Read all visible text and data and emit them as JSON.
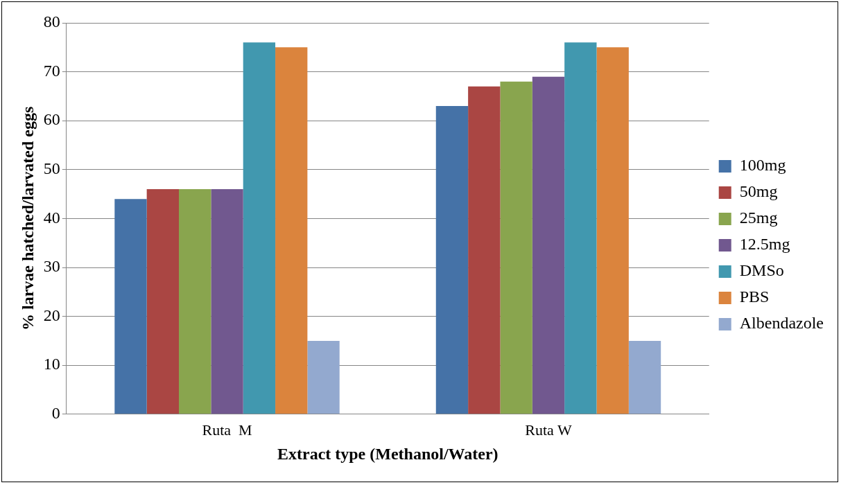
{
  "chart_data": {
    "type": "bar",
    "xlabel": "Extract type (Methanol/Water)",
    "ylabel": "% larvae hatched/larvated eggs",
    "categories": [
      "Ruta  M",
      "Ruta W"
    ],
    "series": [
      {
        "name": "100mg",
        "color": "#4572a7",
        "values": [
          44,
          63
        ]
      },
      {
        "name": "50mg",
        "color": "#aa4643",
        "values": [
          46,
          67
        ]
      },
      {
        "name": "25mg",
        "color": "#89a54e",
        "values": [
          46,
          68
        ]
      },
      {
        "name": "12.5mg",
        "color": "#71588f",
        "values": [
          46,
          69
        ]
      },
      {
        "name": "DMSo",
        "color": "#4198af",
        "values": [
          76,
          76
        ]
      },
      {
        "name": "PBS",
        "color": "#db843d",
        "values": [
          75,
          75
        ]
      },
      {
        "name": "Albendazole",
        "color": "#93a9cf",
        "values": [
          15,
          15
        ]
      }
    ],
    "ylim": [
      0,
      80
    ],
    "yticks": [
      0,
      10,
      20,
      30,
      40,
      50,
      60,
      70,
      80
    ],
    "grid": "y",
    "legend": "right"
  }
}
